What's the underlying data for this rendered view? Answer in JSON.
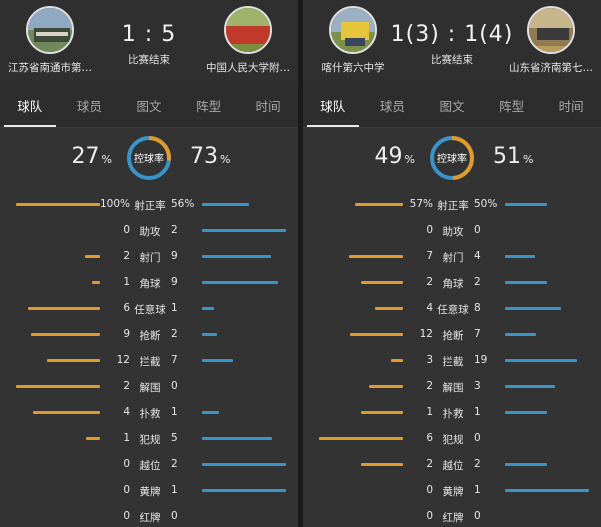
{
  "colors": {
    "home_bar": "#e39a2d",
    "away_bar": "#3b94c7",
    "background": "#333333"
  },
  "tabs": [
    "球队",
    "球员",
    "图文",
    "阵型",
    "时间"
  ],
  "possession_label": "控球率",
  "panels": [
    {
      "home": {
        "name": "江苏省南通市第…",
        "logo": "team-photo"
      },
      "away": {
        "name": "中国人民大学附…",
        "logo": "team-photo"
      },
      "score": "1 : 5",
      "status": "比赛结束",
      "possession": {
        "home": "27",
        "away": "73",
        "unit": "%"
      },
      "stats": [
        {
          "label": "射正率",
          "home": "100%",
          "away": "56%",
          "home_bar": 1.0,
          "away_bar": 0.56
        },
        {
          "label": "助攻",
          "home": "0",
          "away": "2",
          "home_bar": 0.0,
          "away_bar": 1.0
        },
        {
          "label": "射门",
          "home": "2",
          "away": "9",
          "home_bar": 0.18,
          "away_bar": 0.82
        },
        {
          "label": "角球",
          "home": "1",
          "away": "9",
          "home_bar": 0.1,
          "away_bar": 0.9
        },
        {
          "label": "任意球",
          "home": "6",
          "away": "1",
          "home_bar": 0.86,
          "away_bar": 0.14
        },
        {
          "label": "抢断",
          "home": "9",
          "away": "2",
          "home_bar": 0.82,
          "away_bar": 0.18
        },
        {
          "label": "拦截",
          "home": "12",
          "away": "7",
          "home_bar": 0.63,
          "away_bar": 0.37
        },
        {
          "label": "解围",
          "home": "2",
          "away": "0",
          "home_bar": 1.0,
          "away_bar": 0.0
        },
        {
          "label": "扑救",
          "home": "4",
          "away": "1",
          "home_bar": 0.8,
          "away_bar": 0.2
        },
        {
          "label": "犯规",
          "home": "1",
          "away": "5",
          "home_bar": 0.17,
          "away_bar": 0.83
        },
        {
          "label": "越位",
          "home": "0",
          "away": "2",
          "home_bar": 0.0,
          "away_bar": 1.0
        },
        {
          "label": "黄牌",
          "home": "0",
          "away": "1",
          "home_bar": 0.0,
          "away_bar": 1.0
        },
        {
          "label": "红牌",
          "home": "0",
          "away": "0",
          "home_bar": 0.0,
          "away_bar": 0.0
        }
      ]
    },
    {
      "home": {
        "name": "喀什第六中学",
        "logo": "team-photo"
      },
      "away": {
        "name": "山东省济南第七…",
        "logo": "team-photo"
      },
      "score": "1(3) : 1(4)",
      "status": "比赛结束",
      "possession": {
        "home": "49",
        "away": "51",
        "unit": "%"
      },
      "stats": [
        {
          "label": "射正率",
          "home": "57%",
          "away": "50%",
          "home_bar": 0.57,
          "away_bar": 0.5
        },
        {
          "label": "助攻",
          "home": "0",
          "away": "0",
          "home_bar": 0.0,
          "away_bar": 0.0
        },
        {
          "label": "射门",
          "home": "7",
          "away": "4",
          "home_bar": 0.64,
          "away_bar": 0.36
        },
        {
          "label": "角球",
          "home": "2",
          "away": "2",
          "home_bar": 0.5,
          "away_bar": 0.5
        },
        {
          "label": "任意球",
          "home": "4",
          "away": "8",
          "home_bar": 0.33,
          "away_bar": 0.67
        },
        {
          "label": "抢断",
          "home": "12",
          "away": "7",
          "home_bar": 0.63,
          "away_bar": 0.37
        },
        {
          "label": "拦截",
          "home": "3",
          "away": "19",
          "home_bar": 0.14,
          "away_bar": 0.86
        },
        {
          "label": "解围",
          "home": "2",
          "away": "3",
          "home_bar": 0.4,
          "away_bar": 0.6
        },
        {
          "label": "扑救",
          "home": "1",
          "away": "1",
          "home_bar": 0.5,
          "away_bar": 0.5
        },
        {
          "label": "犯规",
          "home": "6",
          "away": "0",
          "home_bar": 1.0,
          "away_bar": 0.0
        },
        {
          "label": "越位",
          "home": "2",
          "away": "2",
          "home_bar": 0.5,
          "away_bar": 0.5
        },
        {
          "label": "黄牌",
          "home": "0",
          "away": "1",
          "home_bar": 0.0,
          "away_bar": 1.0
        },
        {
          "label": "红牌",
          "home": "0",
          "away": "0",
          "home_bar": 0.0,
          "away_bar": 0.0
        }
      ]
    }
  ]
}
